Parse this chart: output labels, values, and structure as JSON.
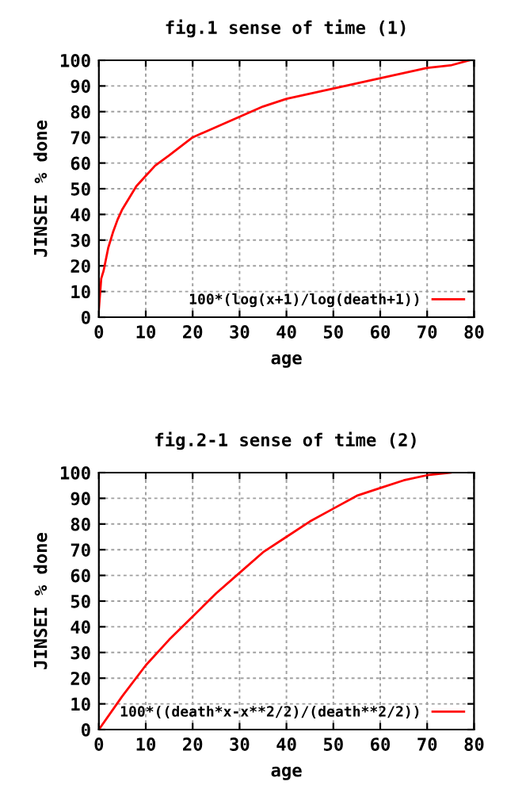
{
  "chart_data": [
    {
      "type": "line",
      "title": "fig.1 sense of time (1)",
      "xlabel": "age",
      "ylabel": "JINSEI % done",
      "series": [
        {
          "name": "100*(log(x+1)/log(death+1))",
          "color": "#ff0000",
          "x": [
            0,
            0.5,
            1,
            2,
            3,
            4,
            5,
            6,
            8,
            10,
            12,
            15,
            20,
            25,
            30,
            35,
            40,
            45,
            50,
            55,
            60,
            65,
            70,
            75,
            79
          ],
          "values": [
            3,
            15,
            18,
            27,
            33,
            38,
            42,
            45,
            51,
            55,
            59,
            63,
            70,
            74,
            78,
            82,
            85,
            87,
            89,
            91,
            93,
            95,
            97,
            98,
            100
          ]
        }
      ],
      "xlim": [
        0,
        80
      ],
      "ylim": [
        0,
        100
      ],
      "xticks": [
        0,
        10,
        20,
        30,
        40,
        50,
        60,
        70,
        80
      ],
      "yticks": [
        0,
        10,
        20,
        30,
        40,
        50,
        60,
        70,
        80,
        90,
        100
      ],
      "grid": true,
      "legend": "bottom right",
      "line_style": "solid",
      "marker": "none"
    },
    {
      "type": "line",
      "title": "fig.2-1 sense of time (2)",
      "xlabel": "age",
      "ylabel": "JINSEI % done",
      "series": [
        {
          "name": "100*((death*x-x**2/2)/(death**2/2))",
          "color": "#ff0000",
          "x": [
            0,
            5,
            10,
            15,
            20,
            25,
            30,
            35,
            40,
            45,
            50,
            55,
            60,
            65,
            70,
            75
          ],
          "values": [
            0,
            13,
            25,
            35,
            44,
            53,
            61,
            69,
            75,
            81,
            86,
            91,
            94,
            97,
            99,
            100
          ]
        }
      ],
      "xlim": [
        0,
        80
      ],
      "ylim": [
        0,
        100
      ],
      "xticks": [
        0,
        10,
        20,
        30,
        40,
        50,
        60,
        70,
        80
      ],
      "yticks": [
        0,
        10,
        20,
        30,
        40,
        50,
        60,
        70,
        80,
        90,
        100
      ],
      "grid": true,
      "legend": "bottom right",
      "line_style": "solid",
      "marker": "none"
    }
  ]
}
